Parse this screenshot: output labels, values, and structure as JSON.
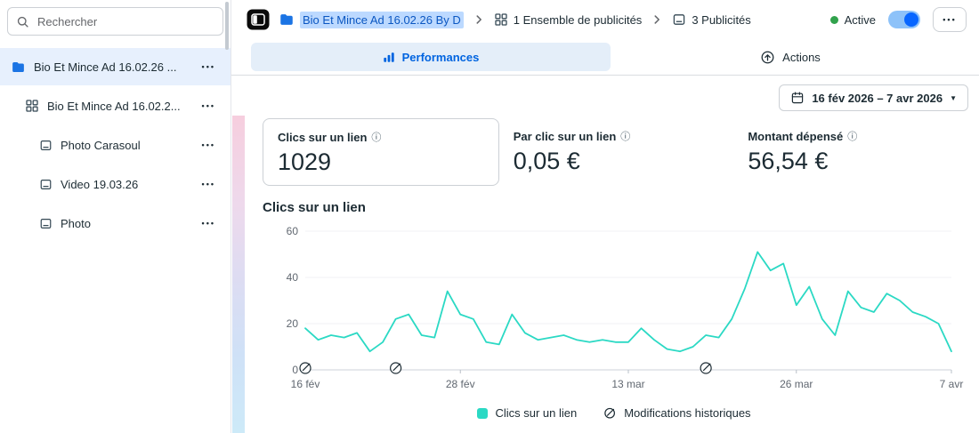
{
  "sidebar": {
    "search_placeholder": "Rechercher",
    "items": [
      {
        "type": "campaign",
        "label": "Bio Et Mince Ad 16.02.26 ...",
        "selected": true
      },
      {
        "type": "adset",
        "label": "Bio Et Mince Ad 16.02.2...",
        "selected": false
      },
      {
        "type": "ad",
        "label": "Photo Carasoul",
        "selected": false
      },
      {
        "type": "ad",
        "label": "Video 19.03.26",
        "selected": false
      },
      {
        "type": "ad",
        "label": "Photo",
        "selected": false
      }
    ]
  },
  "breadcrumb": {
    "campaign": "Bio Et Mince Ad 16.02.26 By D",
    "adsets": "1 Ensemble de publicités",
    "ads": "3 Publicités",
    "status_label": "Active",
    "toggle_on": true
  },
  "tabs": {
    "performances": "Performances",
    "actions": "Actions"
  },
  "date_range": "16 fév 2026 – 7 avr 2026",
  "metrics": [
    {
      "label": "Clics sur un lien",
      "value": "1029",
      "highlighted": true
    },
    {
      "label": "Par clic sur un lien",
      "value": "0,05 €",
      "highlighted": false
    },
    {
      "label": "Montant dépensé",
      "value": "56,54 €",
      "highlighted": false
    }
  ],
  "chart_data": {
    "type": "line",
    "title": "Clics sur un lien",
    "xlabel": "",
    "ylabel": "",
    "ylim": [
      0,
      60
    ],
    "yticks": [
      0,
      20,
      40,
      60
    ],
    "x_tick_labels": [
      "16 fév",
      "28 fév",
      "13 mar",
      "26 mar",
      "7 avr"
    ],
    "x_tick_indices": [
      0,
      12,
      25,
      38,
      50
    ],
    "series": [
      {
        "name": "Clics sur un lien",
        "color": "#2bd9c4",
        "values": [
          18,
          13,
          15,
          14,
          16,
          8,
          12,
          22,
          24,
          15,
          14,
          34,
          24,
          22,
          12,
          11,
          24,
          16,
          13,
          14,
          15,
          13,
          12,
          13,
          12,
          12,
          18,
          13,
          9,
          8,
          10,
          15,
          14,
          22,
          35,
          51,
          43,
          46,
          28,
          36,
          22,
          15,
          34,
          27,
          25,
          33,
          30,
          25,
          23,
          20,
          8
        ]
      }
    ],
    "history_marker_indices": [
      0,
      7,
      31
    ],
    "legend": [
      "Clics sur un lien",
      "Modifications historiques"
    ],
    "legend_position": "bottom",
    "grid": "faint-horizontal"
  },
  "icons": {
    "ellipsis": "•••",
    "info": "ⓘ",
    "caret_down": "▼"
  },
  "colors": {
    "accent_blue": "#0064e0",
    "toggle_blue": "#0866ff",
    "active_green": "#31a24c",
    "series_teal": "#2bd9c4",
    "selected_bg": "#e7f0fd",
    "breadcrumb_highlight": "#bcd9ff"
  }
}
